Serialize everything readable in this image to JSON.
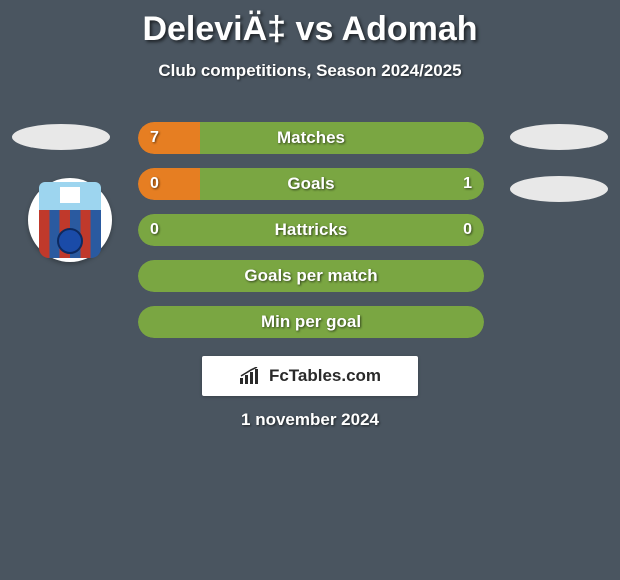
{
  "background_color": "#4a5560",
  "title": "DeleviÄ‡ vs Adomah",
  "title_color": "#ffffff",
  "subtitle": "Club competitions, Season 2024/2025",
  "subtitle_color": "#ffffff",
  "date": "1 november 2024",
  "watermark": "FcTables.com",
  "watermark_bg": "#ffffff",
  "watermark_text_color": "#2a2a2a",
  "player_oval_color": "#e8e8e8",
  "badge": {
    "outer_bg": "#ffffff",
    "top_bg": "#9dd5ef",
    "stripe_colors": [
      "#c0392b",
      "#2a5aa0",
      "#c0392b",
      "#2a5aa0",
      "#c0392b",
      "#2a5aa0"
    ],
    "ball_color": "#1a4ba8"
  },
  "stats": {
    "track_color_left_default": "#7aa642",
    "track_color_right_default": "#5c8030",
    "text_color": "#ffffff",
    "rows": [
      {
        "label": "Matches",
        "left_value": "7",
        "right_value": "",
        "left_width_pct": 18,
        "right_width_pct": 82,
        "left_color": "#e67e22",
        "right_color": "#7aa642",
        "show_right_value": false
      },
      {
        "label": "Goals",
        "left_value": "0",
        "right_value": "1",
        "left_width_pct": 18,
        "right_width_pct": 82,
        "left_color": "#e67e22",
        "right_color": "#7aa642",
        "show_right_value": true
      },
      {
        "label": "Hattricks",
        "left_value": "0",
        "right_value": "0",
        "left_width_pct": 50,
        "right_width_pct": 50,
        "left_color": "#7aa642",
        "right_color": "#7aa642",
        "show_right_value": true
      },
      {
        "label": "Goals per match",
        "left_value": "",
        "right_value": "",
        "left_width_pct": 50,
        "right_width_pct": 50,
        "left_color": "#7aa642",
        "right_color": "#7aa642",
        "show_right_value": false
      },
      {
        "label": "Min per goal",
        "left_value": "",
        "right_value": "",
        "left_width_pct": 50,
        "right_width_pct": 50,
        "left_color": "#7aa642",
        "right_color": "#7aa642",
        "show_right_value": false
      }
    ]
  }
}
